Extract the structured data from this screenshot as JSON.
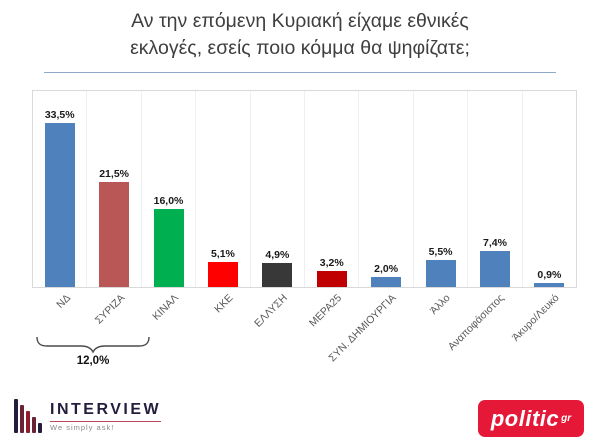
{
  "title": {
    "lines": [
      "Αν την επόμενη Κυριακή είχαμε εθνικές",
      "εκλογές, εσείς ποιο κόμμα θα ψηφίζατε;"
    ]
  },
  "chart_data": {
    "type": "bar",
    "title": "Αν την επόμενη Κυριακή είχαμε εθνικές εκλογές, εσείς ποιο κόμμα θα ψηφίζατε;",
    "categories": [
      "ΝΔ",
      "ΣΥΡΙΖΑ",
      "ΚΙΝΑΛ",
      "ΚΚΕ",
      "ΕΛΛΥΣΗ",
      "ΜΕΡΑ25",
      "ΣΥΝ. ΔΗΜΙΟΥΡΓΙΑ",
      "Άλλο",
      "Αναποφάσιστος",
      "Άκυρο/Λευκό"
    ],
    "values": [
      33.5,
      21.5,
      16.0,
      5.1,
      4.9,
      3.2,
      2.0,
      5.5,
      7.4,
      0.9
    ],
    "value_labels": [
      "33,5%",
      "21,5%",
      "16,0%",
      "5,1%",
      "4,9%",
      "3,2%",
      "2,0%",
      "5,5%",
      "7,4%",
      "0,9%"
    ],
    "bar_colors": [
      "#4f81bd",
      "#b85755",
      "#00b050",
      "#fe0000",
      "#383838",
      "#c00000",
      "#4f81bd",
      "#4f81bd",
      "#4f81bd",
      "#4f81bd"
    ],
    "ylim": [
      0,
      40
    ],
    "xlabel": "",
    "ylabel": "",
    "grid": "light vertical separators",
    "legend": "none",
    "annotation": {
      "text": "12,0%",
      "span_categories": [
        "ΝΔ",
        "ΣΥΡΙΖΑ"
      ]
    }
  },
  "branding": {
    "interview": {
      "name": "INTERVIEW",
      "tagline": "We simply ask!",
      "color": "#241d3e",
      "icon_bar_colors": [
        "#241d3e",
        "#6b2435",
        "#8f1d2c",
        "#6b2435",
        "#241d3e"
      ],
      "icon_bar_heights": [
        34,
        28,
        22,
        16,
        10
      ]
    },
    "politic": {
      "name": "politic",
      "tld": "gr",
      "bg_color": "#e51937"
    }
  }
}
